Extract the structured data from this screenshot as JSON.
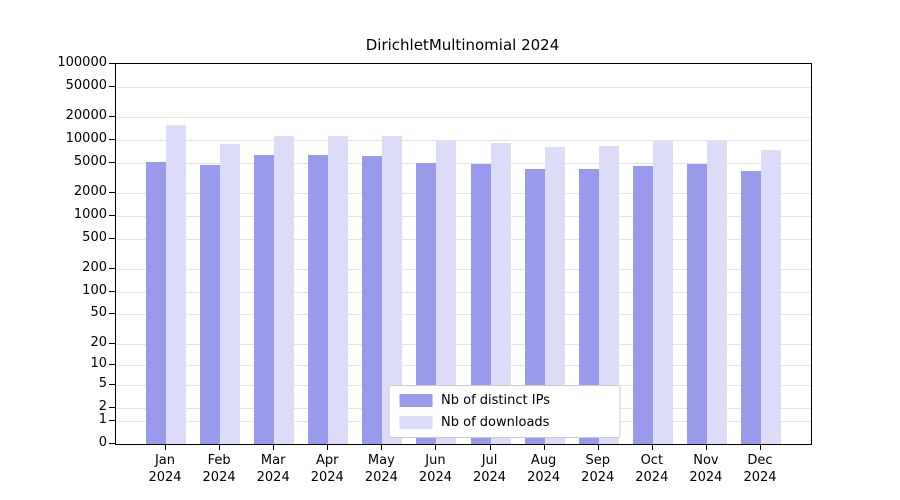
{
  "title": "DirichletMultinomial 2024",
  "chart_data": {
    "type": "bar",
    "title": "DirichletMultinomial 2024",
    "xlabel": "",
    "ylabel": "",
    "y_scale": "log",
    "y_max": 100000,
    "y_ticks": [
      0,
      1,
      2,
      5,
      10,
      20,
      50,
      100,
      200,
      500,
      1000,
      2000,
      5000,
      10000,
      20000,
      50000,
      100000
    ],
    "grid": true,
    "grid_color": "#e3e3e3",
    "categories": [
      "Jan",
      "Feb",
      "Mar",
      "Apr",
      "May",
      "Jun",
      "Jul",
      "Aug",
      "Sep",
      "Oct",
      "Nov",
      "Dec"
    ],
    "x_labels_line2": "2024",
    "series": [
      {
        "name": "Nb of distinct IPs",
        "color": "#9a9aec",
        "values": [
          5200,
          4700,
          6400,
          6300,
          6100,
          5000,
          4800,
          4100,
          4200,
          4600,
          4800,
          3900
        ]
      },
      {
        "name": "Nb of downloads",
        "color": "#dcdcf8",
        "values": [
          16000,
          8800,
          11400,
          11400,
          11300,
          9800,
          9200,
          8000,
          8400,
          9600,
          9700,
          7400
        ]
      }
    ],
    "legend": {
      "position": "bottom-center",
      "entries": [
        "Nb of distinct IPs",
        "Nb of downloads"
      ]
    }
  }
}
